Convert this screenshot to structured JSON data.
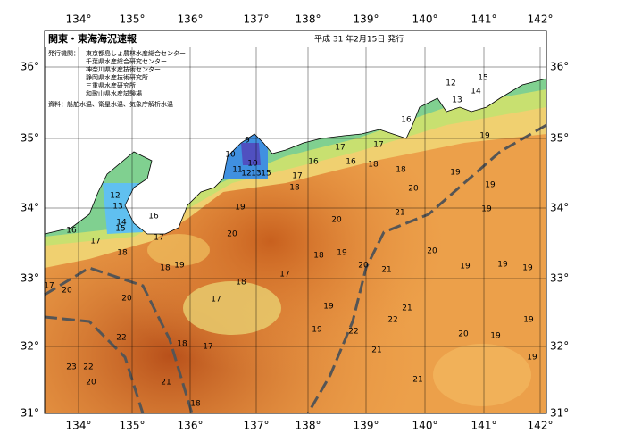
{
  "header": {
    "title": "関東・東海海況速報",
    "date": "平成 31 年2月15日 発行"
  },
  "info": {
    "label": "発行機関：",
    "agencies": [
      "東京都島しょ農林水産総合センター",
      "千葉県水産総合研究センター",
      "神奈川県水産技術センター",
      "静岡県水産技術研究所",
      "三重県水産研究所",
      "和歌山県水産試験場"
    ],
    "source": "資料：船舶水温、衛星水温、気象庁解析水温"
  },
  "map": {
    "lon_labels": [
      "134°",
      "135°",
      "136°",
      "137°",
      "138°",
      "139°",
      "140°",
      "141°",
      "142°"
    ],
    "lat_labels": [
      "36°",
      "35°",
      "34°",
      "33°",
      "32°",
      "31°"
    ],
    "contour_labels": [
      12,
      13,
      14,
      15,
      16,
      19,
      17,
      17,
      16,
      18,
      16,
      18,
      17,
      18,
      19,
      20,
      19,
      9,
      10,
      11,
      10,
      12,
      13,
      15,
      12,
      13,
      14,
      15,
      16,
      16,
      17,
      17,
      19,
      21,
      20,
      19,
      20,
      18,
      19,
      20,
      19,
      19,
      19,
      18,
      18,
      19,
      18,
      17,
      20,
      21,
      17,
      20,
      20,
      17,
      19,
      21,
      22,
      19,
      22,
      21,
      18,
      17,
      19,
      22,
      20,
      19,
      19,
      23,
      22,
      20,
      21,
      21,
      18
    ]
  }
}
